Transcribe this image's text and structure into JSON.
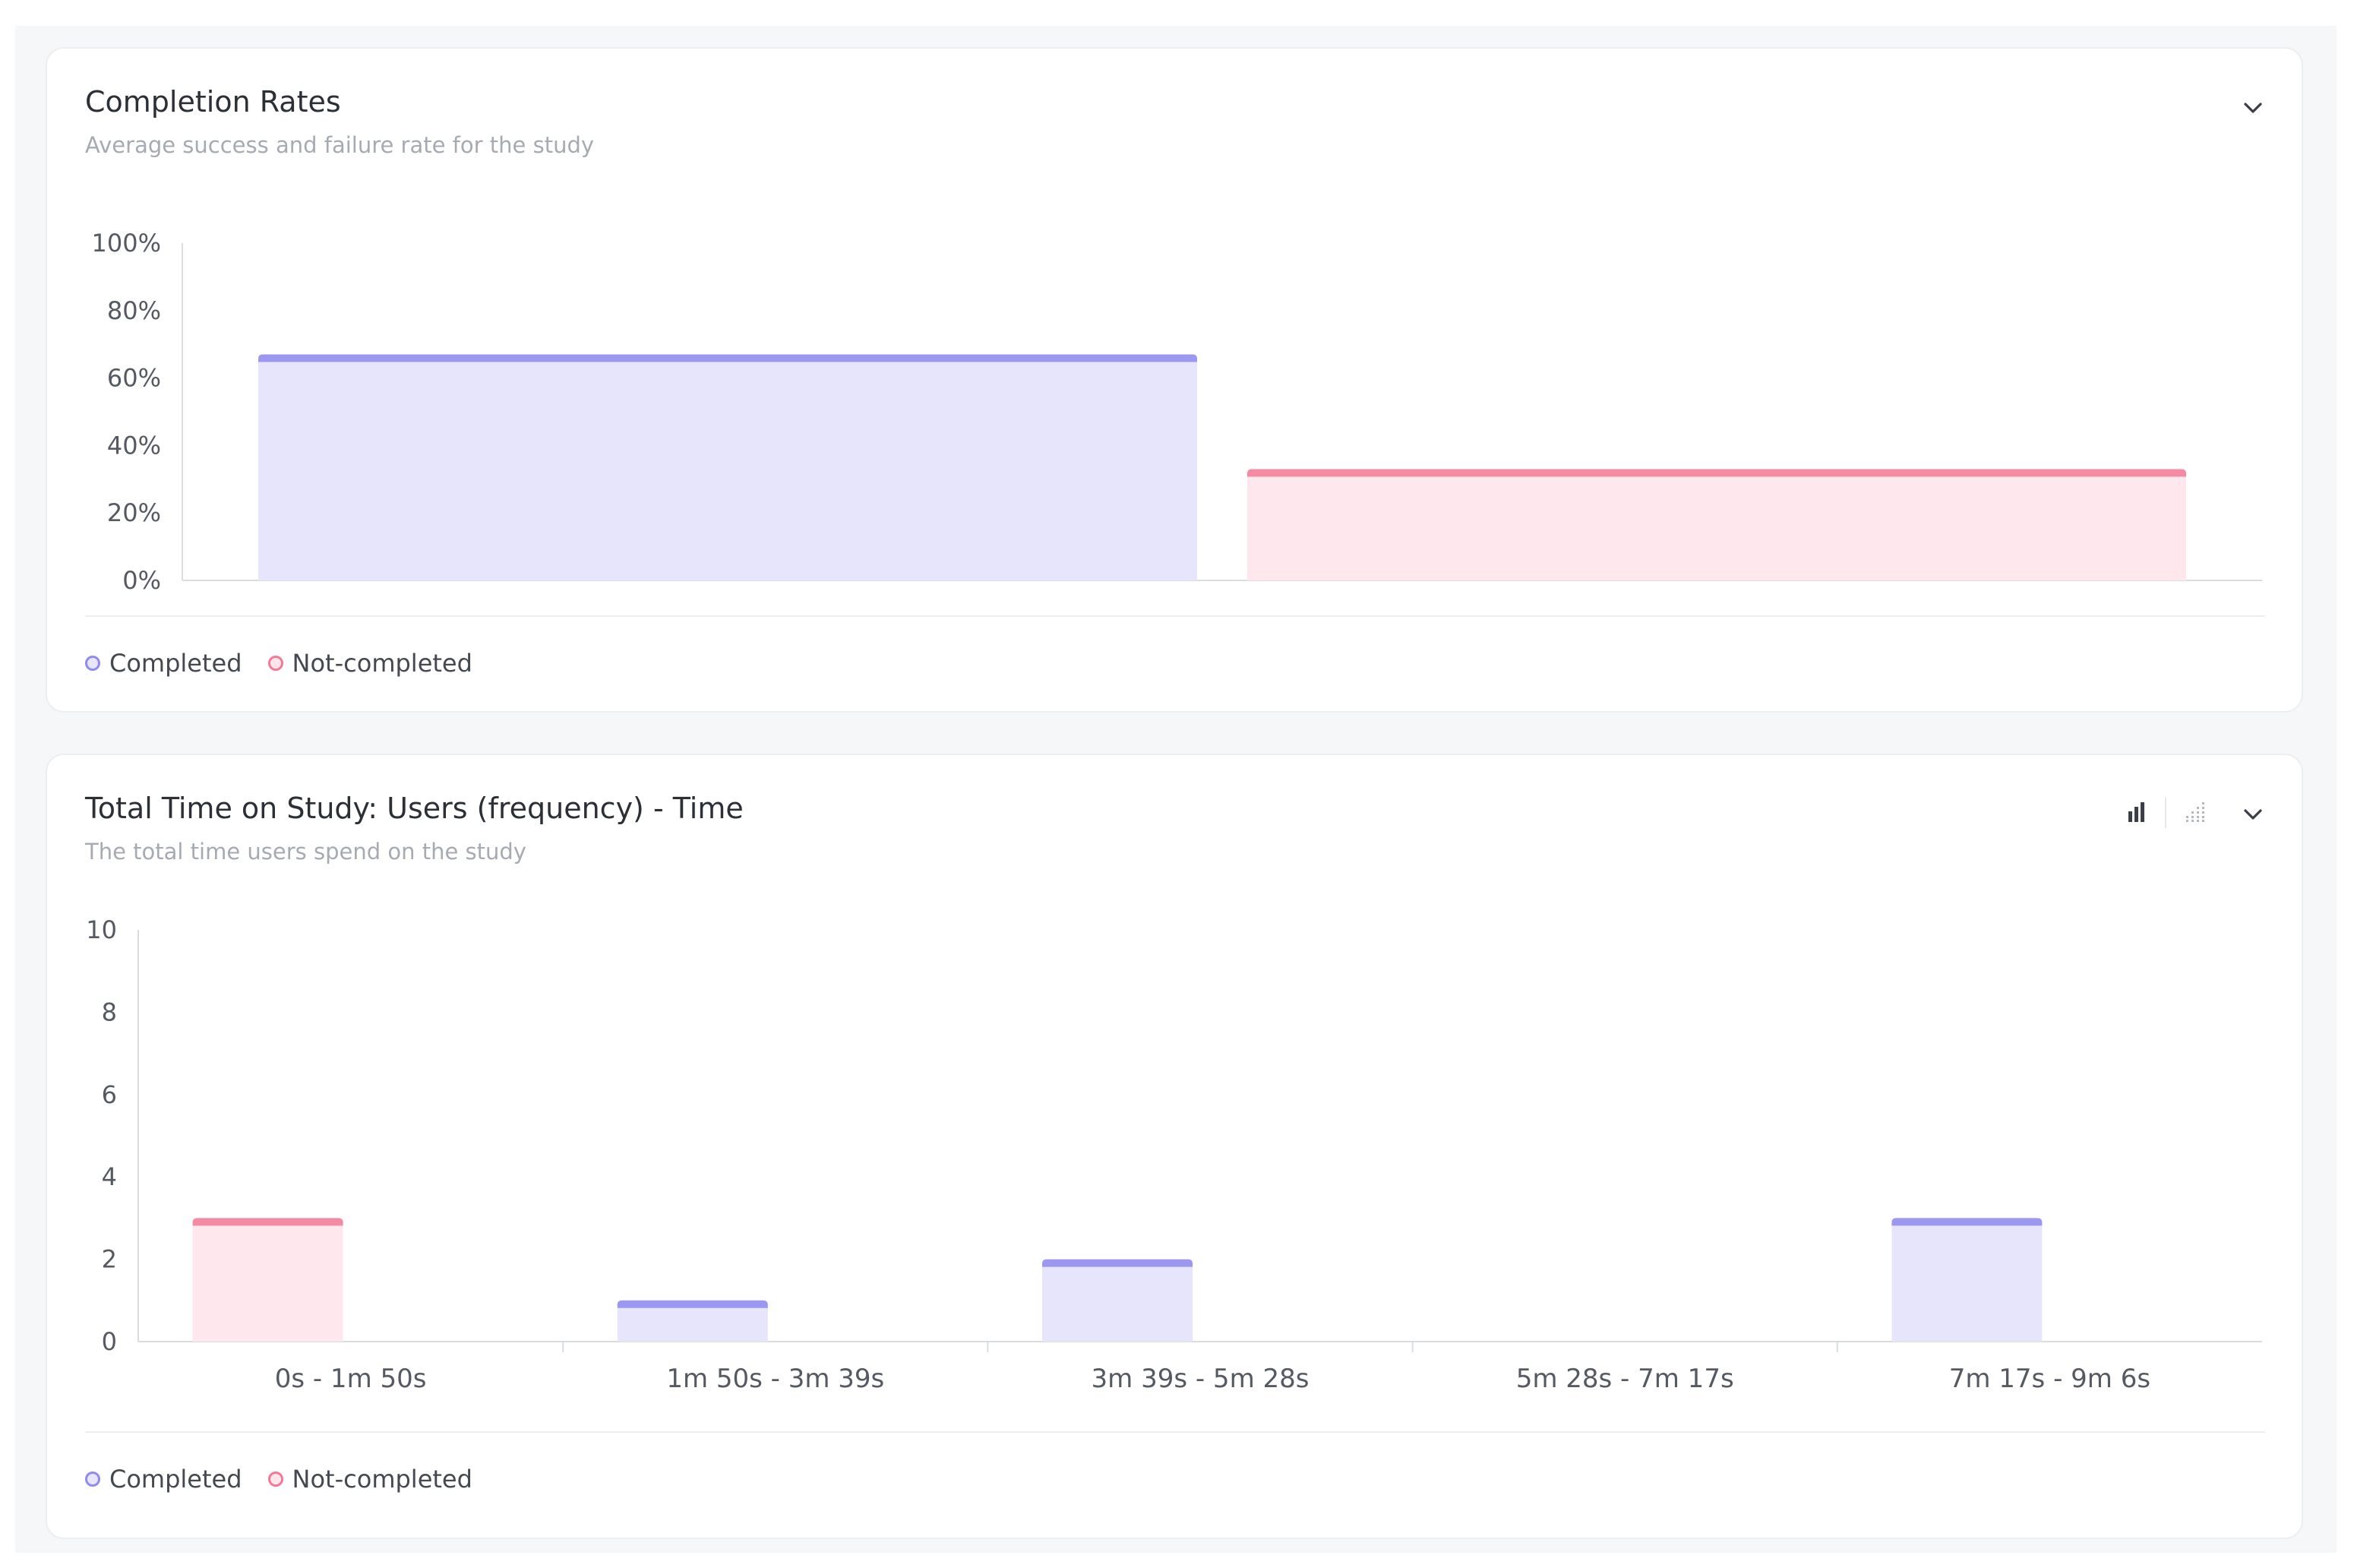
{
  "colors": {
    "completed_fill": "#e6e5fc",
    "completed_stroke": "#9c98f2",
    "not_completed_fill": "#ffe8ed",
    "not_completed_stroke": "#f58aa3",
    "axis": "#d9dce1"
  },
  "card1": {
    "title": "Completion Rates",
    "subtitle": "Average success and failure rate for the study",
    "collapse_icon": "chevron-down-icon",
    "legend": [
      {
        "label": "Completed",
        "color": "#8f8bf0"
      },
      {
        "label": "Not-completed",
        "color": "#f27a96"
      }
    ]
  },
  "card2": {
    "title": "Total Time on Study: Users (frequency) - Time",
    "subtitle": "The total time users spend on the study",
    "toolbar": [
      "bar-chart-icon",
      "scatter-chart-icon",
      "chevron-down-icon"
    ],
    "legend": [
      {
        "label": "Completed",
        "color": "#8f8bf0"
      },
      {
        "label": "Not-completed",
        "color": "#f27a96"
      }
    ]
  },
  "chart_data": [
    {
      "type": "bar",
      "title": "Completion Rates",
      "subtitle": "Average success and failure rate for the study",
      "categories": [
        "Completed",
        "Not-completed"
      ],
      "values": [
        67,
        33
      ],
      "yticks": [
        "0%",
        "20%",
        "40%",
        "60%",
        "80%",
        "100%"
      ],
      "ylim": [
        0,
        100
      ],
      "legend": [
        "Completed",
        "Not-completed"
      ],
      "legend_position": "bottom-left",
      "grid": false
    },
    {
      "type": "bar",
      "title": "Total Time on Study: Users (frequency) - Time",
      "subtitle": "The total time users spend on the study",
      "categories": [
        "0s - 1m 50s",
        "1m 50s - 3m 39s",
        "3m 39s - 5m 28s",
        "5m 28s - 7m 17s",
        "7m 17s - 9m 6s"
      ],
      "series": [
        {
          "name": "Completed",
          "values": [
            0,
            1,
            2,
            0,
            3
          ]
        },
        {
          "name": "Not-completed",
          "values": [
            3,
            0,
            0,
            0,
            0
          ]
        }
      ],
      "yticks": [
        "0",
        "2",
        "4",
        "6",
        "8",
        "10"
      ],
      "ylim": [
        0,
        10
      ],
      "legend": [
        "Completed",
        "Not-completed"
      ],
      "legend_position": "bottom-left",
      "grid": false
    }
  ]
}
